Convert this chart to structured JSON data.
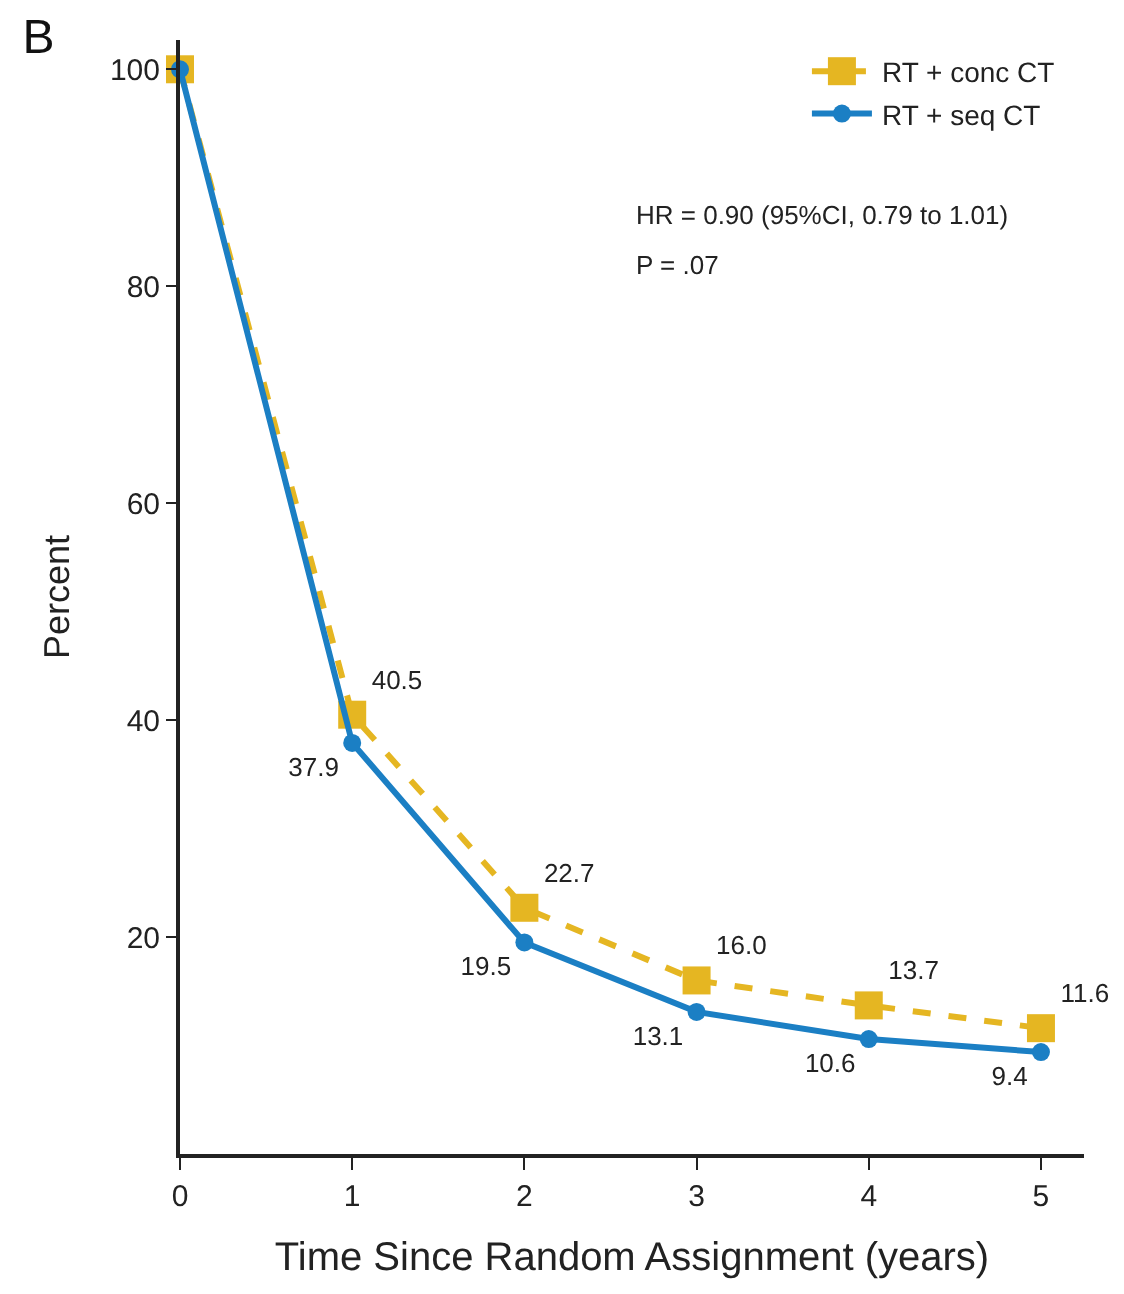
{
  "chart_data": {
    "type": "line",
    "title": "B",
    "xlabel": "Time Since Random Assignment (years)",
    "ylabel": "Percent",
    "x": [
      0,
      1,
      2,
      3,
      4,
      5
    ],
    "series": [
      {
        "name": "RT + conc CT",
        "color": "#e5b622",
        "values": [
          100,
          40.5,
          22.7,
          16.0,
          13.7,
          11.6
        ],
        "value_labels": [
          null,
          "40.5",
          "22.7",
          "16.0",
          "13.7",
          "11.6"
        ],
        "marker": "square",
        "line_style": "dashed"
      },
      {
        "name": "RT + seq CT",
        "color": "#1b7fc4",
        "values": [
          100,
          37.9,
          19.5,
          13.1,
          10.6,
          9.4
        ],
        "value_labels": [
          null,
          "37.9",
          "19.5",
          "13.1",
          "10.6",
          "9.4"
        ],
        "marker": "circle",
        "line_style": "solid"
      }
    ],
    "xlim": [
      0,
      5.25
    ],
    "xticks": [
      0,
      1,
      2,
      3,
      4,
      5
    ],
    "ylim": [
      0,
      102.7
    ],
    "yticks": [
      20,
      40,
      60,
      80,
      100
    ],
    "annotations": [
      "HR = 0.90 (95%CI, 0.79 to 1.01)",
      "P = .07"
    ],
    "legend": "top right"
  }
}
